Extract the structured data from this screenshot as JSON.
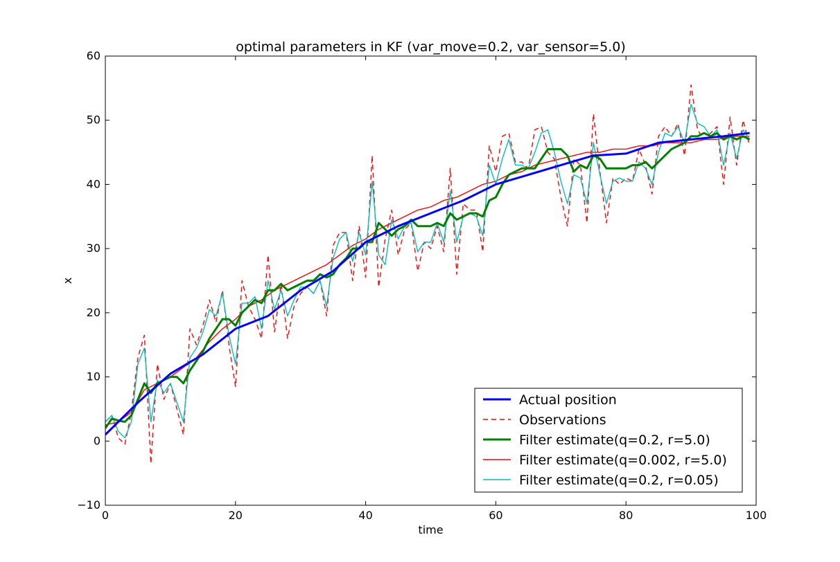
{
  "chart_data": {
    "type": "line",
    "title": "optimal parameters in KF (var_move=0.2, var_sensor=5.0)",
    "xlabel": "time",
    "ylabel": "x",
    "xlim": [
      0,
      100
    ],
    "ylim": [
      -10,
      60
    ],
    "xticks": [
      0,
      20,
      40,
      60,
      80,
      100
    ],
    "yticks": [
      -10,
      0,
      10,
      20,
      30,
      40,
      50,
      60
    ],
    "ytick_labels": [
      "−10",
      "0",
      "10",
      "20",
      "30",
      "40",
      "50",
      "60"
    ],
    "grid": false,
    "legend_position": "lower-right",
    "series": [
      {
        "name": "Actual position",
        "color": "#0000ff",
        "style": "solid-thick",
        "x": [
          0,
          5,
          10,
          15,
          20,
          25,
          30,
          35,
          40,
          45,
          50,
          55,
          60,
          65,
          70,
          75,
          80,
          85,
          90,
          95,
          99
        ],
        "y": [
          1,
          6,
          10.5,
          13.5,
          17.5,
          19.5,
          23.5,
          26.5,
          31,
          33.5,
          35.5,
          37.5,
          40,
          41.5,
          43,
          44.5,
          44.8,
          46.5,
          47,
          47.5,
          48
        ]
      },
      {
        "name": "Observations",
        "color": "#ff0000",
        "style": "dashed",
        "x": [
          0,
          1,
          2,
          3,
          4,
          5,
          6,
          7,
          8,
          9,
          10,
          11,
          12,
          13,
          14,
          15,
          16,
          17,
          18,
          19,
          20,
          21,
          22,
          23,
          24,
          25,
          26,
          27,
          28,
          29,
          30,
          31,
          32,
          33,
          34,
          35,
          36,
          37,
          38,
          39,
          40,
          41,
          42,
          43,
          44,
          45,
          46,
          47,
          48,
          49,
          50,
          51,
          52,
          53,
          54,
          55,
          56,
          57,
          58,
          59,
          60,
          61,
          62,
          63,
          64,
          65,
          66,
          67,
          68,
          69,
          70,
          71,
          72,
          73,
          74,
          75,
          76,
          77,
          78,
          79,
          80,
          81,
          82,
          83,
          84,
          85,
          86,
          87,
          88,
          89,
          90,
          91,
          92,
          93,
          94,
          95,
          96,
          97,
          98,
          99
        ],
        "y": [
          3,
          4,
          0.5,
          -0.5,
          4.5,
          13,
          16.5,
          -3.5,
          12,
          6.5,
          9,
          5,
          1,
          17.5,
          15,
          18,
          22,
          18.5,
          23.5,
          15,
          8.5,
          25,
          21,
          19,
          16,
          29,
          17,
          24.5,
          16,
          21,
          23,
          24,
          23,
          25,
          19.5,
          30.5,
          32.5,
          32.5,
          25,
          33.5,
          25.5,
          44.5,
          24,
          31.5,
          36,
          29,
          33,
          34,
          26.5,
          31,
          30,
          33.5,
          29.5,
          42.5,
          26,
          37,
          36,
          36,
          29.5,
          46,
          42,
          47.5,
          48,
          43.5,
          43.5,
          42.5,
          48.5,
          49,
          45,
          44,
          38,
          33.5,
          44,
          43,
          34,
          51,
          42,
          34,
          41,
          40,
          41,
          40.5,
          45.5,
          43,
          38.5,
          47.5,
          49,
          47.5,
          49.5,
          44.5,
          55.5,
          48.5,
          47,
          48,
          49,
          40,
          50.5,
          43,
          50,
          46
        ]
      },
      {
        "name": "Filter estimate(q=0.2, r=5.0)",
        "color": "#008000",
        "style": "solid-thick",
        "x": [
          0,
          1,
          2,
          3,
          4,
          5,
          6,
          7,
          8,
          9,
          10,
          11,
          12,
          13,
          14,
          15,
          16,
          17,
          18,
          19,
          20,
          21,
          22,
          23,
          24,
          25,
          26,
          27,
          28,
          29,
          30,
          31,
          32,
          33,
          34,
          35,
          36,
          37,
          38,
          39,
          40,
          41,
          42,
          43,
          44,
          45,
          46,
          47,
          48,
          49,
          50,
          51,
          52,
          53,
          54,
          55,
          56,
          57,
          58,
          59,
          60,
          61,
          62,
          63,
          64,
          65,
          66,
          67,
          68,
          69,
          70,
          71,
          72,
          73,
          74,
          75,
          76,
          77,
          78,
          79,
          80,
          81,
          82,
          83,
          84,
          85,
          86,
          87,
          88,
          89,
          90,
          91,
          92,
          93,
          94,
          95,
          96,
          97,
          98,
          99
        ],
        "y": [
          2,
          3.5,
          3.2,
          3,
          4,
          6.5,
          9,
          7.5,
          9,
          9.5,
          10,
          10,
          9,
          11,
          12.5,
          14,
          16,
          17.5,
          19,
          19,
          18,
          20,
          21,
          22,
          21.5,
          23.5,
          23.5,
          24.5,
          23.5,
          24,
          24.5,
          25,
          25,
          26,
          25.5,
          26,
          27.5,
          28.5,
          30,
          30,
          31,
          31,
          34,
          33,
          32,
          33,
          33.5,
          34.5,
          33.5,
          33.5,
          33.5,
          34,
          33.5,
          35.5,
          34.5,
          35,
          35.5,
          35.5,
          35,
          37.5,
          38,
          40,
          41.5,
          42,
          42.5,
          42.5,
          42.5,
          44,
          45.5,
          45.5,
          45.5,
          44.5,
          42,
          43,
          42.5,
          44.5,
          44,
          42.5,
          42.5,
          42.5,
          42.5,
          43,
          43,
          43.5,
          42.5,
          43.5,
          44.5,
          45.5,
          46,
          46.5,
          47.5,
          47.5,
          48,
          47.5,
          48,
          47,
          47.5,
          47,
          47.5,
          47
        ]
      },
      {
        "name": "Filter estimate(q=0.002, r=5.0)",
        "color": "#ff0000",
        "style": "solid",
        "x": [
          0,
          2,
          4,
          6,
          8,
          10,
          12,
          14,
          16,
          18,
          20,
          22,
          24,
          26,
          28,
          30,
          32,
          34,
          36,
          38,
          40,
          42,
          44,
          46,
          48,
          50,
          52,
          54,
          56,
          58,
          60,
          62,
          64,
          66,
          68,
          70,
          72,
          74,
          76,
          78,
          80,
          82,
          84,
          86,
          88,
          90,
          92,
          94,
          96,
          98,
          99
        ],
        "y": [
          2.5,
          3,
          4.5,
          8,
          9,
          10,
          11.5,
          13,
          15.5,
          17.5,
          19,
          21,
          22,
          23.5,
          24.5,
          25.5,
          26.5,
          27.5,
          29,
          30.5,
          31.5,
          33,
          34,
          35,
          36,
          36.5,
          37.5,
          38,
          39,
          40,
          40.5,
          41.5,
          42,
          43,
          43.5,
          44,
          44.5,
          45,
          45,
          45.5,
          45.5,
          46,
          46,
          46.5,
          46.5,
          46.5,
          47,
          47,
          47.5,
          47.5,
          47.5
        ]
      },
      {
        "name": "Filter estimate(q=0.2, r=0.05)",
        "color": "#00bfbf",
        "style": "solid",
        "x": [
          0,
          1,
          2,
          3,
          4,
          5,
          6,
          7,
          8,
          9,
          10,
          11,
          12,
          13,
          14,
          15,
          16,
          17,
          18,
          19,
          20,
          21,
          22,
          23,
          24,
          25,
          26,
          27,
          28,
          29,
          30,
          31,
          32,
          33,
          34,
          35,
          36,
          37,
          38,
          39,
          40,
          41,
          42,
          43,
          44,
          45,
          46,
          47,
          48,
          49,
          50,
          51,
          52,
          53,
          54,
          55,
          56,
          57,
          58,
          59,
          60,
          61,
          62,
          63,
          64,
          65,
          66,
          67,
          68,
          69,
          70,
          71,
          72,
          73,
          74,
          75,
          76,
          77,
          78,
          79,
          80,
          81,
          82,
          83,
          84,
          85,
          86,
          87,
          88,
          89,
          90,
          91,
          92,
          93,
          94,
          95,
          96,
          97,
          98,
          99
        ],
        "y": [
          3,
          4,
          1.5,
          0.5,
          3,
          12,
          14.5,
          3,
          9.5,
          7.5,
          9,
          6,
          3,
          13,
          14.5,
          17,
          20.5,
          19.5,
          23,
          16.5,
          12,
          21.5,
          21.5,
          22.5,
          17.5,
          25,
          20.5,
          23.5,
          19.5,
          22,
          24,
          24,
          23,
          25,
          21,
          28.5,
          31.5,
          32.5,
          28,
          32.5,
          29,
          40.5,
          29,
          27.5,
          34.5,
          31.5,
          33.5,
          34,
          29.5,
          31,
          31,
          34,
          31,
          39,
          31,
          35,
          35.5,
          35,
          32,
          43,
          40,
          44,
          47,
          43,
          43,
          42.5,
          45,
          48,
          48.5,
          45,
          40.5,
          37,
          41.5,
          41,
          37,
          46.5,
          41.5,
          37,
          40.5,
          41,
          40.5,
          40.5,
          43.5,
          42.5,
          40,
          45,
          48,
          47.5,
          49,
          46.5,
          52.5,
          49.5,
          49,
          47.5,
          48.5,
          43,
          48,
          44,
          48.5,
          47
        ]
      }
    ]
  }
}
